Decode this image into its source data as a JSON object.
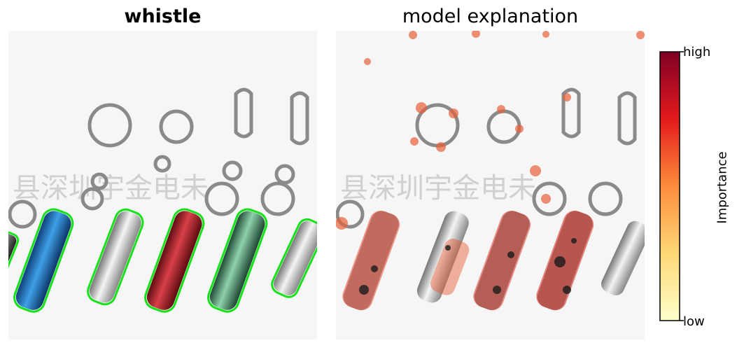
{
  "left_panel": {
    "title": "whistle"
  },
  "right_panel": {
    "title": "model explanation"
  },
  "colorbar": {
    "label": "Importance",
    "high_label": "high",
    "low_label": "low"
  },
  "watermark": "县深圳宇金电未"
}
